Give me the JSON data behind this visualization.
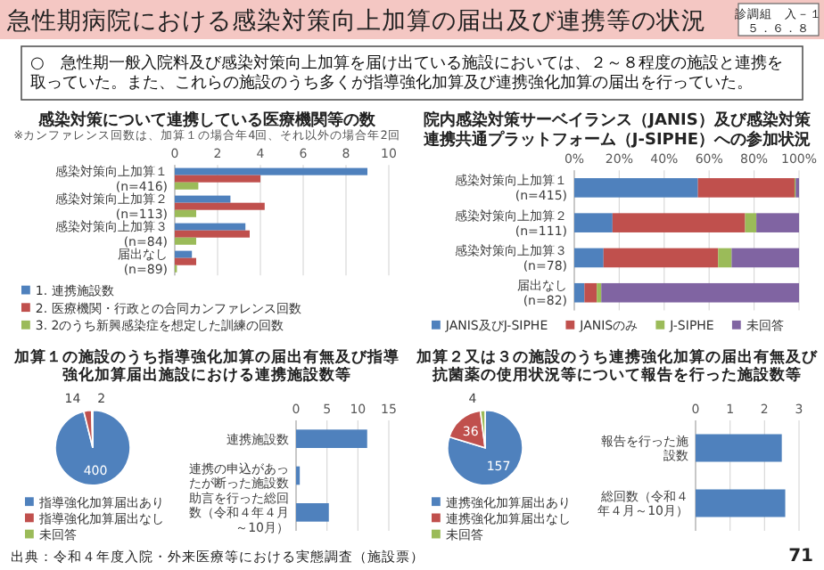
{
  "chart_data": [
    {
      "type": "bar",
      "orientation": "horizontal",
      "title": "感染対策について連携している医療機関等の数",
      "subtitle": "※カンファレンス回数は、加算１の場合年4回、それ以外の場合年2回",
      "categories": [
        "感染対策向上加算１ (n=416)",
        "感染対策向上加算２ (n=113)",
        "感染対策向上加算３ (n=84)",
        "届出なし (n=89)"
      ],
      "series": [
        {
          "name": "1. 連携施設数",
          "color": "#4f81bd",
          "values": [
            9.0,
            2.6,
            3.3,
            0.8
          ]
        },
        {
          "name": "2. 医療機関・行政との合同カンファレンス回数",
          "color": "#c0504d",
          "values": [
            4.0,
            4.2,
            3.5,
            1.0
          ]
        },
        {
          "name": "3. 2のうち新興感染症を想定した訓練の回数",
          "color": "#9bbb59",
          "values": [
            1.1,
            1.0,
            1.0,
            0.1
          ]
        }
      ],
      "xlim": [
        0,
        10
      ],
      "xticks": [
        0,
        2,
        4,
        6,
        8,
        10
      ],
      "grid": "x",
      "legend": "bottom",
      "annotations": [
        "急性期病院における感染対策向上加算の届出及び連携等の状況",
        "診調組　入－１",
        "５．６．８",
        "○　急性期一般入院料及び感染対策向上加算を届け出ている施設においては、２～８程度の施設と連携を取っていた。また、これらの施設のうち多くが指導強化加算及び連携強化加算の届出を行っていた。",
        "出典：令和４年度入院・外来医療等における実態調査（施設票）",
        "71"
      ]
    },
    {
      "type": "bar",
      "orientation": "horizontal",
      "stacked": true,
      "title": "院内感染対策サーベイランス（JANIS）及び感染対策連携共通プラットフォーム（J-SIPHE）への参加状況",
      "categories": [
        "感染対策向上加算１ (n=415)",
        "感染対策向上加算２ (n=111)",
        "感染対策向上加算３ (n=78)",
        "届出なし (n=82)"
      ],
      "series": [
        {
          "name": "JANIS及びJ-SIPHE",
          "color": "#4f81bd",
          "values": [
            55,
            17,
            13,
            4.5
          ]
        },
        {
          "name": "JANISのみ",
          "color": "#c0504d",
          "values": [
            43,
            59,
            51,
            5.5
          ]
        },
        {
          "name": "J-SIPHE",
          "color": "#9bbb59",
          "values": [
            0.5,
            5,
            6,
            2
          ]
        },
        {
          "name": "未回答",
          "color": "#8064a2",
          "values": [
            1.5,
            19,
            30,
            88
          ]
        }
      ],
      "xlim": [
        0,
        100
      ],
      "xticks": [
        {
          "value": 0,
          "label": "0%"
        },
        {
          "value": 20,
          "label": "20%"
        },
        {
          "value": 40,
          "label": "40%"
        },
        {
          "value": 60,
          "label": "60%"
        },
        {
          "value": 80,
          "label": "80%"
        },
        {
          "value": 100,
          "label": "100%"
        }
      ],
      "grid": "x",
      "legend": "bottom"
    },
    {
      "type": "pie",
      "title": "加算１の施設のうち指導強化加算の届出有無及び指導強化加算届出施設における連携施設数等",
      "categories": [
        "指導強化加算届出あり",
        "指導強化加算届出なし",
        "未回答"
      ],
      "values": [
        400,
        14,
        2
      ],
      "colors": [
        "#4f81bd",
        "#c0504d",
        "#9bbb59"
      ],
      "data_labels": true,
      "legend": "bottom"
    },
    {
      "type": "bar",
      "orientation": "horizontal",
      "categories": [
        "連携施設数",
        "連携の申込があったが断った施設数",
        "助言を行った総回数（令和４年４月～10月）"
      ],
      "values": [
        11.5,
        0.6,
        5.3
      ],
      "color": "#4f81bd",
      "xlim": [
        0,
        15
      ],
      "xticks": [
        0,
        5,
        10,
        15
      ],
      "grid": "x"
    },
    {
      "type": "pie",
      "title": "加算２又は３の施設のうち連携強化加算の届出有無及び抗菌薬の使用状況等について報告を行った施設数等",
      "categories": [
        "連携強化加算届出あり",
        "連携強化加算届出なし",
        "未回答"
      ],
      "values": [
        157,
        36,
        4
      ],
      "colors": [
        "#4f81bd",
        "#c0504d",
        "#9bbb59"
      ],
      "data_labels": true,
      "legend": "bottom"
    },
    {
      "type": "bar",
      "orientation": "horizontal",
      "categories": [
        "報告を行った施設数",
        "総回数（令和４年４月～10月）"
      ],
      "values": [
        2.5,
        2.6
      ],
      "color": "#4f81bd",
      "xlim": [
        0,
        3
      ],
      "xticks": [
        0,
        1,
        2,
        3
      ],
      "grid": "x"
    }
  ]
}
